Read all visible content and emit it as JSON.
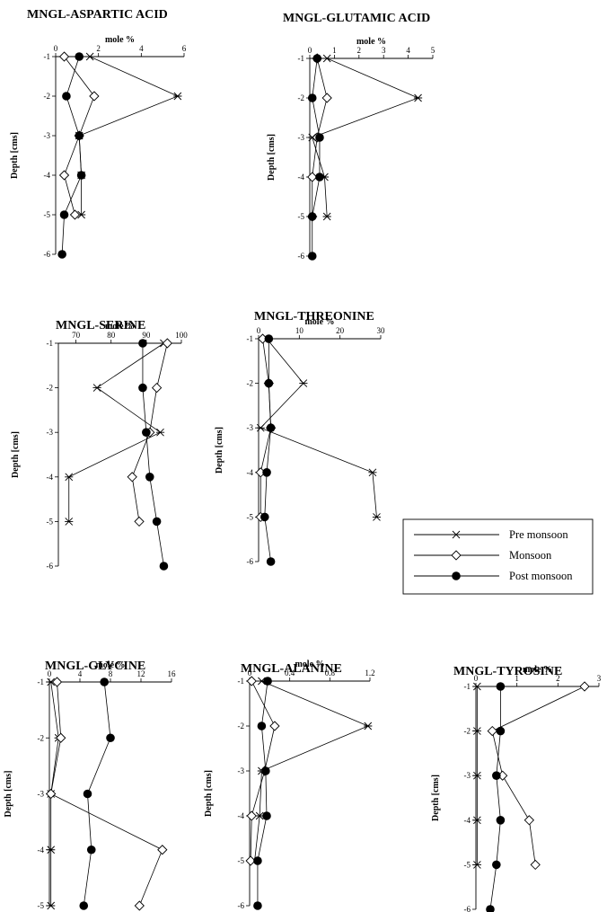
{
  "legend": {
    "items": [
      {
        "label": "Pre monsoon",
        "marker": "star"
      },
      {
        "label": "Monsoon",
        "marker": "diamond"
      },
      {
        "label": "Post monsoon",
        "marker": "dot"
      }
    ]
  },
  "chart_data": [
    {
      "type": "line",
      "title": "MNGL-ASPARTIC ACID",
      "xlabel": "mole %",
      "ylabel": "Depth [cms]",
      "xlim": [
        0,
        6
      ],
      "xticks": [
        0,
        2,
        4,
        6
      ],
      "ylim": [
        -6,
        -1
      ],
      "yticks": [
        -1,
        -2,
        -3,
        -4,
        -5,
        -6
      ],
      "series": [
        {
          "name": "Pre monsoon",
          "marker": "star",
          "x": [
            1.6,
            5.7,
            1.1,
            1.2,
            1.2
          ],
          "y": [
            -1,
            -2,
            -3,
            -4,
            -5
          ]
        },
        {
          "name": "Monsoon",
          "marker": "diamond",
          "x": [
            0.4,
            1.8,
            1.1,
            0.4,
            0.9
          ],
          "y": [
            -1,
            -2,
            -3,
            -4,
            -5
          ]
        },
        {
          "name": "Post monsoon",
          "marker": "dot",
          "x": [
            1.1,
            0.5,
            1.1,
            1.2,
            0.4,
            0.3
          ],
          "y": [
            -1,
            -2,
            -3,
            -4,
            -5,
            -6
          ]
        }
      ]
    },
    {
      "type": "line",
      "title": "MNGL-GLUTAMIC ACID",
      "xlabel": "mole %",
      "ylabel": "Depth [cms]",
      "xlim": [
        0,
        5
      ],
      "xticks": [
        0,
        1,
        2,
        3,
        4,
        5
      ],
      "ylim": [
        -6,
        -1
      ],
      "yticks": [
        -1,
        -2,
        -3,
        -4,
        -5,
        -6
      ],
      "series": [
        {
          "name": "Pre monsoon",
          "marker": "star",
          "x": [
            0.7,
            4.4,
            0.1,
            0.6,
            0.7
          ],
          "y": [
            -1,
            -2,
            -3,
            -4,
            -5
          ]
        },
        {
          "name": "Monsoon",
          "marker": "diamond",
          "x": [
            0.3,
            0.7,
            0.3,
            0.1,
            0.1
          ],
          "y": [
            -1,
            -2,
            -3,
            -4,
            -5
          ]
        },
        {
          "name": "Post monsoon",
          "marker": "dot",
          "x": [
            0.3,
            0.1,
            0.4,
            0.4,
            0.1,
            0.1
          ],
          "y": [
            -1,
            -2,
            -3,
            -4,
            -5,
            -6
          ]
        }
      ]
    },
    {
      "type": "line",
      "title": "MNGL-SERINE",
      "xlabel": "mole %",
      "ylabel": "Depth [cms]",
      "xlim": [
        65,
        100
      ],
      "xticks": [
        70,
        80,
        90,
        100
      ],
      "ylim": [
        -6,
        -1
      ],
      "yticks": [
        -1,
        -2,
        -3,
        -4,
        -5,
        -6
      ],
      "series": [
        {
          "name": "Pre monsoon",
          "marker": "star",
          "x": [
            95,
            76,
            94,
            68,
            68
          ],
          "y": [
            -1,
            -2,
            -3,
            -4,
            -5
          ]
        },
        {
          "name": "Monsoon",
          "marker": "diamond",
          "x": [
            96,
            93,
            91,
            86,
            88
          ],
          "y": [
            -1,
            -2,
            -3,
            -4,
            -5
          ]
        },
        {
          "name": "Post monsoon",
          "marker": "dot",
          "x": [
            89,
            89,
            90,
            91,
            93,
            95
          ],
          "y": [
            -1,
            -2,
            -3,
            -4,
            -5,
            -6
          ]
        }
      ]
    },
    {
      "type": "line",
      "title": "MNGL-THREONINE",
      "xlabel": "mole %",
      "ylabel": "Depth [cms]",
      "xlim": [
        0,
        30
      ],
      "xticks": [
        0,
        10,
        20,
        30
      ],
      "ylim": [
        -6,
        -1
      ],
      "yticks": [
        -1,
        -2,
        -3,
        -4,
        -5,
        -6
      ],
      "series": [
        {
          "name": "Pre monsoon",
          "marker": "star",
          "x": [
            2,
            11,
            0.5,
            28,
            29
          ],
          "y": [
            -1,
            -2,
            -3,
            -4,
            -5
          ]
        },
        {
          "name": "Monsoon",
          "marker": "diamond",
          "x": [
            1,
            2.5,
            3,
            0.5,
            0.5
          ],
          "y": [
            -1,
            -2,
            -3,
            -4,
            -5
          ]
        },
        {
          "name": "Post monsoon",
          "marker": "dot",
          "x": [
            2.5,
            2.5,
            3,
            2,
            1.5,
            3
          ],
          "y": [
            -1,
            -2,
            -3,
            -4,
            -5,
            -6
          ]
        }
      ]
    },
    {
      "type": "line",
      "title": "MNGL-GLYCINE",
      "xlabel": "mole %",
      "ylabel": "Depth [cms]",
      "xlim": [
        0,
        16
      ],
      "xticks": [
        0,
        4,
        8,
        12,
        16
      ],
      "ylim": [
        -5,
        -1
      ],
      "yticks": [
        -1,
        -2,
        -3,
        -4,
        -5
      ],
      "series": [
        {
          "name": "Pre monsoon",
          "marker": "star",
          "x": [
            0.2,
            1.2,
            0.2,
            0.2,
            0.2
          ],
          "y": [
            -1,
            -2,
            -3,
            -4,
            -5
          ]
        },
        {
          "name": "Monsoon",
          "marker": "diamond",
          "x": [
            1,
            1.5,
            0.2,
            14.8,
            11.8
          ],
          "y": [
            -1,
            -2,
            -3,
            -4,
            -5
          ]
        },
        {
          "name": "Post monsoon",
          "marker": "dot",
          "x": [
            7.2,
            8,
            5,
            5.5,
            4.5
          ],
          "y": [
            -1,
            -2,
            -3,
            -4,
            -5
          ]
        }
      ]
    },
    {
      "type": "line",
      "title": "MNGL-ALANINE",
      "xlabel": "mole %",
      "ylabel": "Depth [cms]",
      "xlim": [
        0,
        1.2
      ],
      "xticks": [
        0,
        0.4,
        0.8,
        1.2
      ],
      "ylim": [
        -6,
        -1
      ],
      "yticks": [
        -1,
        -2,
        -3,
        -4,
        -5,
        -6
      ],
      "series": [
        {
          "name": "Pre monsoon",
          "marker": "star",
          "x": [
            0.12,
            1.18,
            0.12,
            0.1,
            0.05
          ],
          "y": [
            -1,
            -2,
            -3,
            -4,
            -5
          ]
        },
        {
          "name": "Monsoon",
          "marker": "diamond",
          "x": [
            0.02,
            0.25,
            0.15,
            0.02,
            0.01
          ],
          "y": [
            -1,
            -2,
            -3,
            -4,
            -5
          ]
        },
        {
          "name": "Post monsoon",
          "marker": "dot",
          "x": [
            0.18,
            0.12,
            0.16,
            0.17,
            0.08,
            0.08
          ],
          "y": [
            -1,
            -2,
            -3,
            -4,
            -5,
            -6
          ]
        }
      ]
    },
    {
      "type": "line",
      "title": "MNGL-TYROSINE",
      "xlabel": "mole %",
      "ylabel": "Depth [cms]",
      "xlim": [
        0,
        3
      ],
      "xticks": [
        0,
        1,
        2,
        3
      ],
      "ylim": [
        -6,
        -1
      ],
      "yticks": [
        -1,
        -2,
        -3,
        -4,
        -5,
        -6
      ],
      "series": [
        {
          "name": "Pre monsoon",
          "marker": "star",
          "x": [
            0.03,
            0.03,
            0.03,
            0.03,
            0.03
          ],
          "y": [
            -1,
            -2,
            -3,
            -4,
            -5
          ]
        },
        {
          "name": "Monsoon",
          "marker": "diamond",
          "x": [
            2.65,
            0.4,
            0.65,
            1.3,
            1.45
          ],
          "y": [
            -1,
            -2,
            -3,
            -4,
            -5
          ]
        },
        {
          "name": "Post monsoon",
          "marker": "dot",
          "x": [
            0.6,
            0.6,
            0.5,
            0.6,
            0.5,
            0.35
          ],
          "y": [
            -1,
            -2,
            -3,
            -4,
            -5,
            -6
          ]
        }
      ]
    }
  ]
}
